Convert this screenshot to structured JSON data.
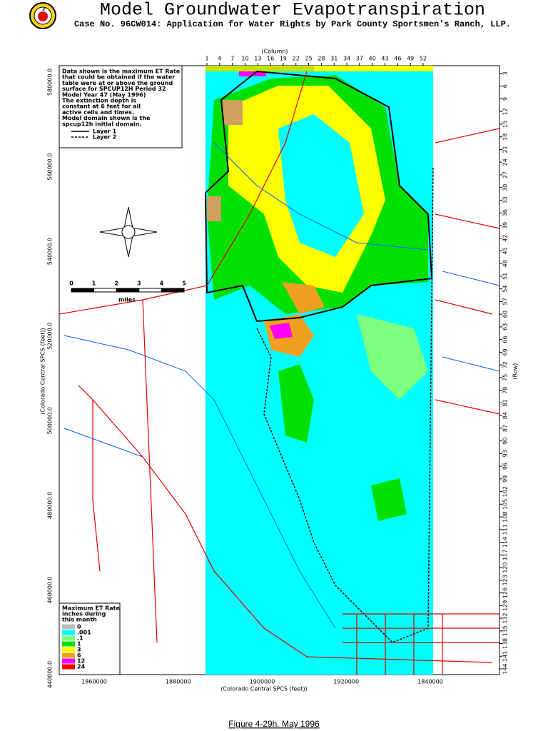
{
  "header": {
    "title": "Model Groundwater Evapotranspiration",
    "subtitle": "Case No. 96CW014: Application for Water Rights by Park County Sportsmen's Ranch, LLP."
  },
  "column_axis": {
    "label": "(Column)",
    "ticks": [
      1,
      4,
      7,
      10,
      13,
      16,
      19,
      22,
      25,
      28,
      31,
      34,
      37,
      40,
      43,
      46,
      49,
      52
    ]
  },
  "row_axis": {
    "label": "(Row)",
    "ticks": [
      3,
      6,
      9,
      12,
      15,
      18,
      21,
      24,
      27,
      30,
      33,
      36,
      39,
      42,
      45,
      48,
      51,
      54,
      57,
      60,
      63,
      66,
      69,
      72,
      75,
      78,
      81,
      84,
      87,
      90,
      93,
      96,
      99,
      102,
      105,
      108,
      111,
      114,
      117,
      120,
      123,
      126,
      129,
      132,
      135,
      138,
      141,
      144
    ]
  },
  "y_axis": {
    "label": "(Colorado Central SPCS (feet))",
    "ticks": [
      "580000.0",
      "560000.0",
      "540000.0",
      "520000.0",
      "500000.0",
      "480000.0",
      "460000.0",
      "440000.0"
    ]
  },
  "x_axis": {
    "label": "(Colorado Central SPCS (feet))",
    "ticks": [
      "1860000",
      "1880000",
      "1900000",
      "1920000",
      "1840000"
    ]
  },
  "note": {
    "lines": [
      "Data shown is the maximum ET Rate",
      "that could be obtained if the water",
      "table were at or above the ground",
      "surface for SPCUP12H Period 32",
      "Model Year 47 (May 1996)",
      "The extinction depth is",
      "constant at 6 feet for all",
      "active cells and times.",
      "Model domain shown is the",
      "spcup12h initial domain."
    ],
    "layers": [
      "Layer 1",
      "Layer 2"
    ]
  },
  "scale_bar": {
    "ticks": [
      0,
      1,
      2,
      3,
      4,
      5
    ],
    "unit": "miles"
  },
  "legend": {
    "title_lines": [
      "Maximum ET Rate",
      "inches during",
      "this month"
    ],
    "items": [
      {
        "label": "0",
        "color": "#bdbdbd"
      },
      {
        "label": ".001",
        "color": "#00ffff"
      },
      {
        "label": ".1",
        "color": "#7fff7f"
      },
      {
        "label": "1",
        "color": "#00e000"
      },
      {
        "label": "3",
        "color": "#ffff00"
      },
      {
        "label": "6",
        "color": "#f0a020"
      },
      {
        "label": "12",
        "color": "#ff00ff"
      },
      {
        "label": "24",
        "color": "#ff0000"
      }
    ]
  },
  "caption": "Figure 4-29h.  May 1996"
}
